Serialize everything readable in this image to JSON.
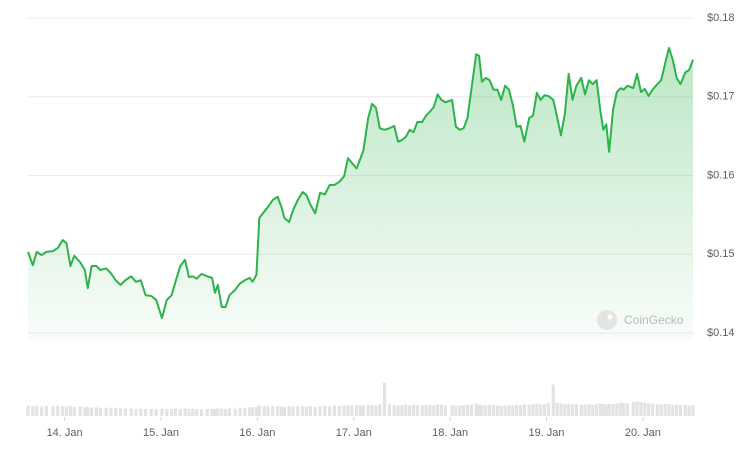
{
  "chart_data": {
    "type": "line",
    "watermark": "CoinGecko",
    "area": true,
    "grid": true,
    "xlim": [
      13.62,
      20.52
    ],
    "ylim": [
      0.14,
      0.18
    ],
    "y2lim": [
      0,
      1
    ],
    "xticks": [
      {
        "value": 14,
        "label": "14. Jan"
      },
      {
        "value": 15,
        "label": "15. Jan"
      },
      {
        "value": 16,
        "label": "16. Jan"
      },
      {
        "value": 17,
        "label": "17. Jan"
      },
      {
        "value": 18,
        "label": "18. Jan"
      },
      {
        "value": 19,
        "label": "19. Jan"
      },
      {
        "value": 20,
        "label": "20. Jan"
      }
    ],
    "yticks": [
      {
        "value": 0.18,
        "label": "$0.18"
      },
      {
        "value": 0.17,
        "label": "$0.17"
      },
      {
        "value": 0.16,
        "label": "$0.16"
      },
      {
        "value": 0.15,
        "label": "$0.15"
      },
      {
        "value": 0.14,
        "label": "$0.14"
      }
    ],
    "x": [
      13.62,
      13.67,
      13.71,
      13.76,
      13.81,
      13.88,
      13.93,
      13.98,
      14.02,
      14.06,
      14.1,
      14.16,
      14.21,
      14.24,
      14.28,
      14.33,
      14.37,
      14.43,
      14.48,
      14.53,
      14.58,
      14.63,
      14.69,
      14.74,
      14.79,
      14.84,
      14.9,
      14.95,
      15.01,
      15.06,
      15.11,
      15.15,
      15.2,
      15.25,
      15.29,
      15.33,
      15.37,
      15.42,
      15.48,
      15.53,
      15.56,
      15.59,
      15.63,
      15.67,
      15.71,
      15.77,
      15.82,
      15.87,
      15.92,
      15.95,
      15.99,
      16.02,
      16.07,
      16.11,
      16.16,
      16.21,
      16.25,
      16.28,
      16.33,
      16.37,
      16.42,
      16.47,
      16.51,
      16.55,
      16.6,
      16.65,
      16.7,
      16.75,
      16.8,
      16.85,
      16.9,
      16.94,
      16.98,
      17.03,
      17.07,
      17.1,
      17.15,
      17.19,
      17.23,
      17.27,
      17.32,
      17.37,
      17.42,
      17.46,
      17.5,
      17.54,
      17.58,
      17.62,
      17.66,
      17.71,
      17.75,
      17.79,
      17.83,
      17.87,
      17.91,
      17.95,
      18.02,
      18.06,
      18.1,
      18.14,
      18.18,
      18.22,
      18.27,
      18.3,
      18.33,
      18.37,
      18.41,
      18.45,
      18.49,
      18.53,
      18.57,
      18.61,
      18.65,
      18.69,
      18.73,
      18.77,
      18.82,
      18.86,
      18.9,
      18.94,
      18.98,
      19.02,
      19.07,
      19.11,
      19.15,
      19.19,
      19.23,
      19.27,
      19.31,
      19.36,
      19.4,
      19.44,
      19.48,
      19.52,
      19.56,
      19.59,
      19.62,
      19.65,
      19.69,
      19.73,
      19.77,
      19.8,
      19.84,
      19.9,
      19.94,
      19.98,
      20.02,
      20.06,
      20.1,
      20.15,
      20.19,
      20.23,
      20.27,
      20.31,
      20.35,
      20.39,
      20.44,
      20.48,
      20.52
    ],
    "series": [
      {
        "color": "#2db34a",
        "values": [
          0.1503,
          0.1486,
          0.1503,
          0.1499,
          0.1503,
          0.1504,
          0.1508,
          0.1518,
          0.1514,
          0.1485,
          0.1498,
          0.149,
          0.148,
          0.1457,
          0.1485,
          0.1485,
          0.148,
          0.1482,
          0.1476,
          0.1467,
          0.1461,
          0.1467,
          0.1472,
          0.1465,
          0.1467,
          0.1448,
          0.1447,
          0.1442,
          0.1419,
          0.1442,
          0.1448,
          0.1465,
          0.1485,
          0.1493,
          0.1471,
          0.1472,
          0.1469,
          0.1475,
          0.1472,
          0.147,
          0.1451,
          0.1461,
          0.1433,
          0.1433,
          0.1448,
          0.1455,
          0.1463,
          0.1467,
          0.147,
          0.1465,
          0.1474,
          0.1546,
          0.1554,
          0.156,
          0.1569,
          0.1573,
          0.156,
          0.1546,
          0.1541,
          0.1556,
          0.1569,
          0.1579,
          0.1575,
          0.1563,
          0.1552,
          0.1578,
          0.1576,
          0.1588,
          0.1588,
          0.1592,
          0.1599,
          0.1622,
          0.1616,
          0.1609,
          0.1622,
          0.1632,
          0.1673,
          0.1691,
          0.1686,
          0.166,
          0.1658,
          0.166,
          0.1663,
          0.1643,
          0.1645,
          0.1649,
          0.1658,
          0.1655,
          0.1668,
          0.1668,
          0.1676,
          0.1681,
          0.1687,
          0.1703,
          0.1696,
          0.1693,
          0.1696,
          0.1662,
          0.1658,
          0.166,
          0.1673,
          0.1709,
          0.1754,
          0.1752,
          0.1719,
          0.1724,
          0.1721,
          0.1709,
          0.1709,
          0.1696,
          0.1714,
          0.1709,
          0.169,
          0.1662,
          0.1663,
          0.1643,
          0.1673,
          0.1676,
          0.1705,
          0.1696,
          0.1702,
          0.1701,
          0.1696,
          0.1674,
          0.1651,
          0.1678,
          0.1729,
          0.1696,
          0.1714,
          0.1724,
          0.1703,
          0.1721,
          0.1716,
          0.1721,
          0.1681,
          0.1658,
          0.1665,
          0.163,
          0.1683,
          0.1706,
          0.1711,
          0.1709,
          0.1714,
          0.1711,
          0.1729,
          0.1706,
          0.171,
          0.1701,
          0.1709,
          0.1716,
          0.1721,
          0.1742,
          0.1762,
          0.1747,
          0.1724,
          0.1716,
          0.1731,
          0.1734,
          0.1747
        ]
      },
      {
        "color": "#e3e3e3",
        "axis": "y2",
        "type": "bar",
        "values": [
          0.3,
          0.28,
          0.3,
          0.27,
          0.29,
          0.28,
          0.3,
          0.28,
          0.27,
          0.29,
          0.26,
          0.27,
          0.25,
          0.26,
          0.24,
          0.25,
          0.23,
          0.24,
          0.22,
          0.23,
          0.22,
          0.21,
          0.22,
          0.2,
          0.21,
          0.2,
          0.2,
          0.19,
          0.21,
          0.2,
          0.2,
          0.21,
          0.2,
          0.22,
          0.2,
          0.21,
          0.2,
          0.19,
          0.2,
          0.21,
          0.2,
          0.22,
          0.21,
          0.2,
          0.22,
          0.21,
          0.23,
          0.22,
          0.24,
          0.25,
          0.26,
          0.3,
          0.28,
          0.27,
          0.29,
          0.28,
          0.27,
          0.26,
          0.28,
          0.27,
          0.28,
          0.29,
          0.27,
          0.28,
          0.26,
          0.28,
          0.29,
          0.28,
          0.3,
          0.29,
          0.3,
          0.31,
          0.29,
          0.3,
          0.31,
          0.3,
          0.32,
          0.31,
          0.3,
          0.33,
          0.95,
          0.35,
          0.32,
          0.3,
          0.31,
          0.33,
          0.3,
          0.32,
          0.31,
          0.3,
          0.32,
          0.31,
          0.3,
          0.33,
          0.32,
          0.3,
          0.31,
          0.29,
          0.3,
          0.31,
          0.32,
          0.33,
          0.35,
          0.32,
          0.31,
          0.3,
          0.32,
          0.31,
          0.3,
          0.29,
          0.3,
          0.31,
          0.3,
          0.32,
          0.31,
          0.33,
          0.32,
          0.34,
          0.35,
          0.33,
          0.34,
          0.36,
          0.9,
          0.38,
          0.36,
          0.34,
          0.35,
          0.33,
          0.34,
          0.32,
          0.33,
          0.34,
          0.32,
          0.35,
          0.36,
          0.34,
          0.33,
          0.35,
          0.34,
          0.36,
          0.38,
          0.37,
          0.36,
          0.4,
          0.42,
          0.4,
          0.38,
          0.36,
          0.35,
          0.34,
          0.33,
          0.35,
          0.34,
          0.32,
          0.33,
          0.31,
          0.32,
          0.3,
          0.31
        ]
      }
    ]
  }
}
